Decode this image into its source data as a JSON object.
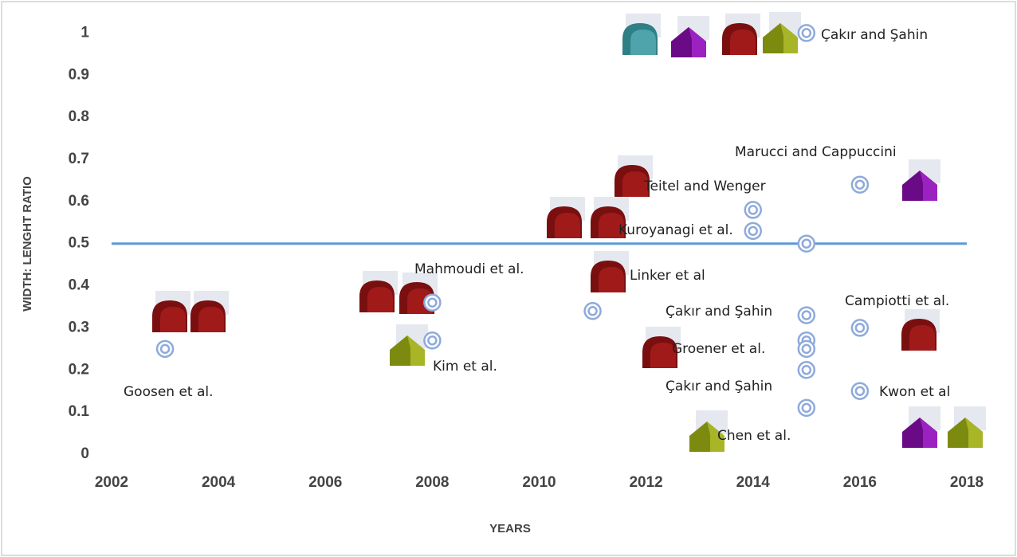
{
  "chart_data": {
    "type": "scatter",
    "x": [
      2003,
      2008,
      2008,
      2011,
      2014,
      2014,
      2015,
      2015,
      2015,
      2015,
      2015,
      2015,
      2015,
      2016,
      2016,
      2016
    ],
    "values": [
      0.25,
      0.36,
      0.27,
      0.34,
      0.58,
      0.53,
      1.0,
      0.33,
      0.27,
      0.25,
      0.2,
      0.11,
      0.5,
      0.64,
      0.3,
      0.15
    ],
    "color": "#8eaadb",
    "xlim": [
      2002,
      2018
    ],
    "xticks": [
      2002,
      2004,
      2006,
      2008,
      2010,
      2012,
      2014,
      2016,
      2018
    ],
    "ylim": [
      0,
      1.05
    ],
    "yticks": [
      0,
      0.1,
      0.2,
      0.3,
      0.4,
      0.5,
      0.6,
      0.7,
      0.8,
      0.9,
      1
    ],
    "xlabel": "YEARS",
    "ylabel": "WIDTH: LENGHT RATIO",
    "reference_line": {
      "value": 0.5,
      "color": "#5b9bd5"
    },
    "annotations": [
      "Goosen et al.",
      "Mahmoudi et al.",
      "Kim et al.",
      "Teitel and Wenger",
      "Kuroyanagi et al.",
      "Linker et al",
      "Çakır and Şahin",
      "Marucci and Cappuccini",
      "Çakır and Şahin",
      "Groener et al.",
      "Çakır and Şahin",
      "Chen et al.",
      "Campiotti et al.",
      "Kwon et al"
    ]
  }
}
